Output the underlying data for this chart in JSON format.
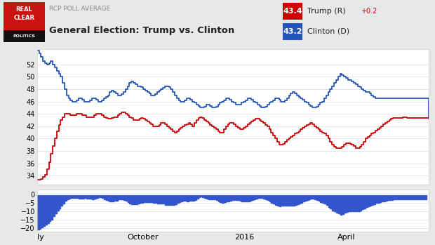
{
  "title_small": "RCP POLL AVERAGE",
  "title_large": "General Election: Trump vs. Clinton",
  "trump_label": "Trump (R)",
  "trump_value": "43.4",
  "trump_change": "+0.2",
  "clinton_label": "Clinton (D)",
  "clinton_value": "43.2",
  "trump_color": "#cc0000",
  "clinton_color": "#2255bb",
  "diff_fill_color": "#3355cc",
  "bg_header": "#e8e8e8",
  "bg_chart": "#ffffff",
  "x_tick_labels": [
    "ly",
    "October",
    "2016",
    "April"
  ],
  "x_tick_positions": [
    0.01,
    0.27,
    0.53,
    0.79
  ],
  "main_ylim": [
    32.5,
    54.5
  ],
  "main_yticks": [
    34,
    36,
    38,
    40,
    42,
    44,
    46,
    48,
    50,
    52
  ],
  "diff_ylim": [
    -22,
    2.5
  ],
  "diff_yticks": [
    0,
    -5,
    -10,
    -15,
    -20
  ],
  "trump_data": [
    33.3,
    33.3,
    33.5,
    33.8,
    34.2,
    35.0,
    36.2,
    37.5,
    38.8,
    40.0,
    41.2,
    42.2,
    43.0,
    43.5,
    44.0,
    44.0,
    44.0,
    43.8,
    43.8,
    43.8,
    44.0,
    44.0,
    44.0,
    43.8,
    43.8,
    43.5,
    43.5,
    43.5,
    43.5,
    43.8,
    44.0,
    44.0,
    44.0,
    43.8,
    43.5,
    43.3,
    43.2,
    43.2,
    43.3,
    43.5,
    43.5,
    43.8,
    44.0,
    44.2,
    44.2,
    44.0,
    43.8,
    43.5,
    43.3,
    43.0,
    43.0,
    43.0,
    43.2,
    43.3,
    43.2,
    43.0,
    42.8,
    42.5,
    42.3,
    42.0,
    42.0,
    42.0,
    42.2,
    42.5,
    42.5,
    42.3,
    42.0,
    41.8,
    41.5,
    41.2,
    41.0,
    41.2,
    41.5,
    41.8,
    42.0,
    42.2,
    42.3,
    42.5,
    42.3,
    42.0,
    42.5,
    43.0,
    43.3,
    43.5,
    43.3,
    43.0,
    42.8,
    42.5,
    42.2,
    42.0,
    41.8,
    41.5,
    41.2,
    41.0,
    41.0,
    41.5,
    42.0,
    42.3,
    42.5,
    42.5,
    42.3,
    42.0,
    41.8,
    41.5,
    41.5,
    41.8,
    42.0,
    42.3,
    42.5,
    42.8,
    43.0,
    43.2,
    43.2,
    43.0,
    42.8,
    42.5,
    42.2,
    42.0,
    41.5,
    41.0,
    40.5,
    40.0,
    39.5,
    39.0,
    39.0,
    39.2,
    39.5,
    39.8,
    40.0,
    40.3,
    40.5,
    40.8,
    41.0,
    41.2,
    41.5,
    41.8,
    42.0,
    42.2,
    42.3,
    42.5,
    42.3,
    42.0,
    41.8,
    41.5,
    41.2,
    41.0,
    40.8,
    40.5,
    40.0,
    39.5,
    39.0,
    38.7,
    38.5,
    38.5,
    38.5,
    38.7,
    39.0,
    39.3,
    39.3,
    39.2,
    39.0,
    38.8,
    38.5,
    38.5,
    38.7,
    39.0,
    39.5,
    40.0,
    40.3,
    40.5,
    40.8,
    41.0,
    41.3,
    41.5,
    41.8,
    42.0,
    42.3,
    42.5,
    42.8,
    43.0,
    43.2,
    43.3,
    43.4,
    43.4,
    43.4,
    43.4,
    43.5,
    43.5,
    43.4,
    43.4,
    43.4,
    43.4,
    43.4,
    43.4,
    43.4,
    43.4,
    43.4,
    43.4,
    43.4,
    43.4
  ],
  "clinton_data": [
    54.2,
    53.8,
    53.2,
    52.5,
    52.2,
    52.0,
    52.2,
    52.5,
    52.0,
    51.5,
    51.0,
    50.5,
    50.0,
    49.0,
    48.0,
    47.0,
    46.5,
    46.2,
    46.0,
    46.0,
    46.2,
    46.5,
    46.5,
    46.3,
    46.0,
    46.0,
    46.0,
    46.2,
    46.5,
    46.5,
    46.3,
    46.0,
    46.0,
    46.2,
    46.5,
    46.8,
    47.0,
    47.5,
    47.8,
    47.5,
    47.3,
    47.0,
    47.0,
    47.2,
    47.5,
    48.0,
    48.5,
    49.0,
    49.2,
    49.0,
    48.8,
    48.5,
    48.5,
    48.3,
    48.0,
    47.8,
    47.5,
    47.3,
    47.0,
    47.0,
    47.2,
    47.5,
    47.8,
    48.0,
    48.2,
    48.5,
    48.5,
    48.3,
    48.0,
    47.5,
    47.0,
    46.5,
    46.2,
    46.0,
    46.0,
    46.2,
    46.5,
    46.5,
    46.3,
    46.0,
    45.8,
    45.5,
    45.3,
    45.0,
    45.0,
    45.2,
    45.5,
    45.5,
    45.3,
    45.0,
    45.0,
    45.2,
    45.5,
    45.8,
    46.0,
    46.2,
    46.5,
    46.5,
    46.3,
    46.0,
    45.8,
    45.5,
    45.5,
    45.5,
    45.8,
    46.0,
    46.2,
    46.5,
    46.5,
    46.3,
    46.0,
    45.8,
    45.5,
    45.3,
    45.0,
    45.0,
    45.2,
    45.5,
    45.8,
    46.0,
    46.2,
    46.5,
    46.5,
    46.3,
    46.0,
    46.0,
    46.2,
    46.5,
    47.0,
    47.3,
    47.5,
    47.3,
    47.0,
    46.8,
    46.5,
    46.3,
    46.0,
    45.8,
    45.5,
    45.3,
    45.0,
    45.0,
    45.2,
    45.5,
    45.8,
    46.0,
    46.5,
    47.0,
    47.5,
    48.0,
    48.5,
    49.0,
    49.5,
    50.0,
    50.5,
    50.3,
    50.0,
    49.8,
    49.5,
    49.5,
    49.3,
    49.0,
    48.8,
    48.5,
    48.3,
    48.0,
    47.8,
    47.5,
    47.5,
    47.3,
    47.0,
    46.8,
    46.5,
    46.5,
    46.5,
    46.5,
    46.5,
    46.5,
    46.5,
    46.5,
    46.5,
    46.5,
    46.5,
    46.5,
    46.5,
    46.5,
    46.5,
    46.5,
    46.5,
    46.5,
    46.5,
    46.5,
    46.5,
    46.5,
    46.5,
    46.5,
    46.5,
    46.5,
    46.5,
    43.2
  ]
}
